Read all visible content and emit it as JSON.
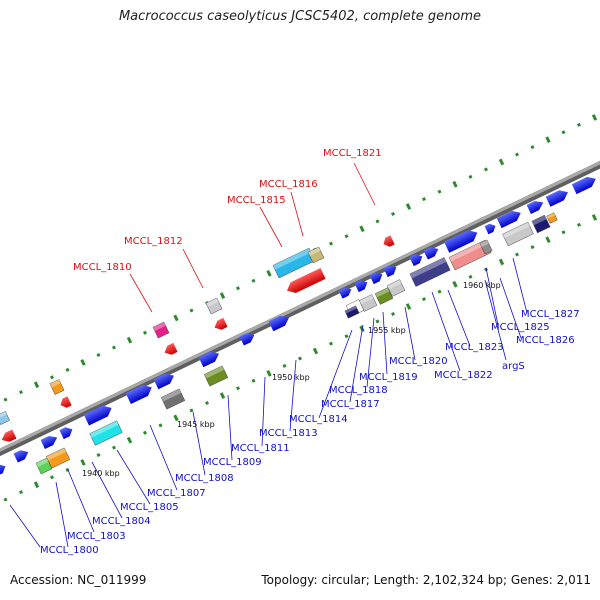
{
  "title": "Macrococcus caseolyticus JCSC5402, complete genome",
  "footer": {
    "accession": "Accession: NC_011999",
    "summary": "Topology: circular; Length: 2,102,324 bp; Genes: 2,011"
  },
  "ticks": [
    "1940 kbp",
    "1945 kbp",
    "1950 kbp",
    "1955 kbp",
    "1960 kbp"
  ],
  "labels_red": [
    "MCCL_1821",
    "MCCL_1816",
    "MCCL_1815",
    "MCCL_1812",
    "MCCL_1810"
  ],
  "labels_blue": [
    "MCCL_1827",
    "MCCL_1825",
    "MCCL_1826",
    "argS",
    "MCCL_1823",
    "MCCL_1822",
    "MCCL_1820",
    "MCCL_1819",
    "MCCL_1818",
    "MCCL_1817",
    "MCCL_1814",
    "MCCL_1813",
    "MCCL_1811",
    "MCCL_1809",
    "MCCL_1808",
    "MCCL_1807",
    "MCCL_1805",
    "MCCL_1804",
    "MCCL_1803",
    "MCCL_1800"
  ],
  "colors": {
    "backbone": "#8c8c8c",
    "forward_gene": "#0000ee",
    "reverse_gene": "#ee0000",
    "gc_marks": "#2d8a2d",
    "label_red": "#dd1111",
    "label_blue": "#1111cc"
  }
}
